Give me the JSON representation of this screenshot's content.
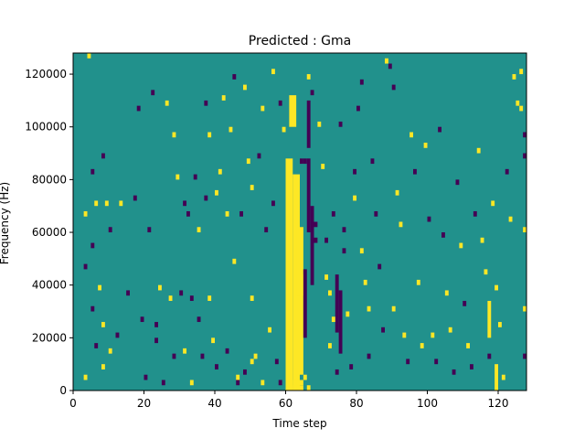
{
  "chart_data": {
    "type": "heatmap",
    "title": "Predicted : Gma",
    "xlabel": "Time step",
    "ylabel": "Frequency (Hz)",
    "xlim": [
      0,
      128
    ],
    "ylim": [
      0,
      128000
    ],
    "x_ticks": [
      0,
      20,
      40,
      60,
      80,
      100,
      120
    ],
    "y_ticks": [
      0,
      20000,
      40000,
      60000,
      80000,
      100000,
      120000
    ],
    "grid": false,
    "colors": {
      "low": "#440154",
      "mid": "#21918c",
      "high": "#fde725"
    },
    "background_level": "mid",
    "cells": [
      [
        3,
        4000,
        "high"
      ],
      [
        3,
        66000,
        "high"
      ],
      [
        3,
        46000,
        "low"
      ],
      [
        4,
        126000,
        "high"
      ],
      [
        5,
        82000,
        "low"
      ],
      [
        5,
        54000,
        "low"
      ],
      [
        5,
        30000,
        "low"
      ],
      [
        6,
        70000,
        "high"
      ],
      [
        6,
        16000,
        "low"
      ],
      [
        7,
        38000,
        "high"
      ],
      [
        8,
        88000,
        "low"
      ],
      [
        8,
        24000,
        "high"
      ],
      [
        8,
        8000,
        "high"
      ],
      [
        9,
        70000,
        "high"
      ],
      [
        10,
        60000,
        "low"
      ],
      [
        10,
        14000,
        "high"
      ],
      [
        12,
        20000,
        "low"
      ],
      [
        13,
        70000,
        "high"
      ],
      [
        15,
        36000,
        "low"
      ],
      [
        17,
        72000,
        "low"
      ],
      [
        18,
        106000,
        "low"
      ],
      [
        19,
        26000,
        "low"
      ],
      [
        20,
        4000,
        "low"
      ],
      [
        21,
        60000,
        "low"
      ],
      [
        22,
        112000,
        "low"
      ],
      [
        23,
        18000,
        "low"
      ],
      [
        23,
        24000,
        "low"
      ],
      [
        24,
        38000,
        "high"
      ],
      [
        25,
        2000,
        "low"
      ],
      [
        26,
        108000,
        "high"
      ],
      [
        27,
        34000,
        "high"
      ],
      [
        28,
        12000,
        "low"
      ],
      [
        28,
        96000,
        "high"
      ],
      [
        29,
        80000,
        "high"
      ],
      [
        30,
        36000,
        "low"
      ],
      [
        31,
        70000,
        "low"
      ],
      [
        31,
        14000,
        "high"
      ],
      [
        32,
        66000,
        "low"
      ],
      [
        33,
        34000,
        "low"
      ],
      [
        33,
        2000,
        "high"
      ],
      [
        34,
        80000,
        "low"
      ],
      [
        35,
        60000,
        "high"
      ],
      [
        35,
        26000,
        "low"
      ],
      [
        36,
        12000,
        "low"
      ],
      [
        37,
        72000,
        "low"
      ],
      [
        37,
        108000,
        "low"
      ],
      [
        38,
        96000,
        "high"
      ],
      [
        38,
        34000,
        "high"
      ],
      [
        39,
        18000,
        "high"
      ],
      [
        40,
        74000,
        "high"
      ],
      [
        40,
        8000,
        "low"
      ],
      [
        41,
        82000,
        "high"
      ],
      [
        42,
        110000,
        "high"
      ],
      [
        43,
        66000,
        "high"
      ],
      [
        43,
        14000,
        "low"
      ],
      [
        44,
        98000,
        "high"
      ],
      [
        45,
        118000,
        "low"
      ],
      [
        45,
        48000,
        "high"
      ],
      [
        46,
        4000,
        "high"
      ],
      [
        46,
        2000,
        "low"
      ],
      [
        47,
        66000,
        "low"
      ],
      [
        48,
        6000,
        "low"
      ],
      [
        48,
        114000,
        "high"
      ],
      [
        49,
        86000,
        "high"
      ],
      [
        50,
        76000,
        "high"
      ],
      [
        50,
        34000,
        "high"
      ],
      [
        50,
        10000,
        "high"
      ],
      [
        51,
        12000,
        "high"
      ],
      [
        52,
        88000,
        "low"
      ],
      [
        53,
        106000,
        "high"
      ],
      [
        53,
        2000,
        "high"
      ],
      [
        54,
        60000,
        "low"
      ],
      [
        55,
        22000,
        "high"
      ],
      [
        56,
        70000,
        "low"
      ],
      [
        56,
        120000,
        "high"
      ],
      [
        57,
        10000,
        "low"
      ],
      [
        58,
        108000,
        "low"
      ],
      [
        58,
        2000,
        "low"
      ],
      [
        59,
        98000,
        "high"
      ],
      [
        60,
        66000,
        "high"
      ],
      [
        60,
        14000,
        "high"
      ]
    ],
    "bands": [
      {
        "x0": 60,
        "x1": 62,
        "y0": 0,
        "y1": 88000,
        "level": "high"
      },
      {
        "x0": 62,
        "x1": 64,
        "y0": 0,
        "y1": 82000,
        "level": "high"
      },
      {
        "x0": 61,
        "x1": 63,
        "y0": 100000,
        "y1": 112000,
        "level": "high"
      },
      {
        "x0": 63,
        "x1": 65,
        "y0": 36000,
        "y1": 62000,
        "level": "high"
      },
      {
        "x0": 64,
        "x1": 65,
        "y0": 6000,
        "y1": 44000,
        "level": "high"
      },
      {
        "x0": 65,
        "x1": 66,
        "y0": 20000,
        "y1": 46000,
        "level": "low"
      },
      {
        "x0": 66,
        "x1": 67,
        "y0": 60000,
        "y1": 88000,
        "level": "low"
      },
      {
        "x0": 66,
        "x1": 67,
        "y0": 92000,
        "y1": 110000,
        "level": "low"
      },
      {
        "x0": 67,
        "x1": 68,
        "y0": 40000,
        "y1": 70000,
        "level": "low"
      },
      {
        "x0": 74,
        "x1": 75,
        "y0": 22000,
        "y1": 44000,
        "level": "low"
      },
      {
        "x0": 75,
        "x1": 76,
        "y0": 14000,
        "y1": 38000,
        "level": "low"
      },
      {
        "x0": 119,
        "x1": 120,
        "y0": 0,
        "y1": 10000,
        "level": "high"
      },
      {
        "x0": 117,
        "x1": 118,
        "y0": 20000,
        "y1": 34000,
        "level": "high"
      }
    ],
    "cells_extra": [
      [
        61,
        0,
        "high"
      ],
      [
        62,
        0,
        "high"
      ],
      [
        62,
        2000,
        "high"
      ],
      [
        63,
        0,
        "high"
      ],
      [
        63,
        2000,
        "high"
      ],
      [
        64,
        0,
        "high"
      ],
      [
        64,
        2000,
        "high"
      ],
      [
        65,
        4000,
        "high"
      ],
      [
        66,
        0,
        "high"
      ],
      [
        64,
        86000,
        "low"
      ],
      [
        65,
        86000,
        "low"
      ],
      [
        67,
        112000,
        "low"
      ],
      [
        66,
        118000,
        "high"
      ],
      [
        68,
        62000,
        "low"
      ],
      [
        68,
        56000,
        "low"
      ],
      [
        69,
        100000,
        "high"
      ],
      [
        70,
        84000,
        "high"
      ],
      [
        71,
        56000,
        "low"
      ],
      [
        71,
        42000,
        "high"
      ],
      [
        72,
        36000,
        "high"
      ],
      [
        73,
        26000,
        "high"
      ],
      [
        72,
        16000,
        "high"
      ],
      [
        73,
        66000,
        "low"
      ],
      [
        74,
        6000,
        "low"
      ],
      [
        75,
        100000,
        "low"
      ],
      [
        76,
        60000,
        "low"
      ],
      [
        76,
        52000,
        "low"
      ],
      [
        77,
        28000,
        "high"
      ],
      [
        78,
        8000,
        "low"
      ],
      [
        79,
        82000,
        "low"
      ],
      [
        79,
        72000,
        "high"
      ],
      [
        80,
        106000,
        "low"
      ],
      [
        81,
        116000,
        "low"
      ],
      [
        81,
        52000,
        "high"
      ],
      [
        82,
        40000,
        "high"
      ],
      [
        83,
        30000,
        "high"
      ],
      [
        83,
        12000,
        "low"
      ],
      [
        84,
        86000,
        "low"
      ],
      [
        85,
        66000,
        "low"
      ],
      [
        86,
        46000,
        "low"
      ],
      [
        87,
        22000,
        "low"
      ],
      [
        88,
        124000,
        "high"
      ],
      [
        89,
        122000,
        "low"
      ],
      [
        90,
        114000,
        "low"
      ],
      [
        90,
        30000,
        "high"
      ],
      [
        91,
        74000,
        "high"
      ],
      [
        92,
        62000,
        "high"
      ],
      [
        93,
        20000,
        "high"
      ],
      [
        94,
        10000,
        "low"
      ],
      [
        95,
        96000,
        "high"
      ],
      [
        96,
        82000,
        "low"
      ],
      [
        97,
        40000,
        "high"
      ],
      [
        98,
        16000,
        "high"
      ],
      [
        99,
        92000,
        "high"
      ],
      [
        100,
        64000,
        "low"
      ],
      [
        101,
        20000,
        "high"
      ],
      [
        102,
        10000,
        "low"
      ],
      [
        103,
        98000,
        "low"
      ],
      [
        104,
        58000,
        "low"
      ],
      [
        105,
        36000,
        "high"
      ],
      [
        106,
        22000,
        "high"
      ],
      [
        107,
        6000,
        "low"
      ],
      [
        108,
        78000,
        "low"
      ],
      [
        109,
        54000,
        "high"
      ],
      [
        110,
        32000,
        "low"
      ],
      [
        111,
        16000,
        "high"
      ],
      [
        112,
        8000,
        "low"
      ],
      [
        113,
        66000,
        "low"
      ],
      [
        114,
        90000,
        "high"
      ],
      [
        115,
        56000,
        "high"
      ],
      [
        116,
        44000,
        "high"
      ],
      [
        117,
        12000,
        "low"
      ],
      [
        118,
        70000,
        "high"
      ],
      [
        119,
        38000,
        "high"
      ],
      [
        120,
        24000,
        "high"
      ],
      [
        121,
        4000,
        "high"
      ],
      [
        122,
        82000,
        "low"
      ],
      [
        123,
        64000,
        "high"
      ],
      [
        124,
        118000,
        "high"
      ],
      [
        125,
        108000,
        "high"
      ],
      [
        126,
        106000,
        "high"
      ],
      [
        126,
        120000,
        "high"
      ],
      [
        127,
        96000,
        "low"
      ],
      [
        127,
        88000,
        "low"
      ],
      [
        127,
        60000,
        "high"
      ],
      [
        127,
        12000,
        "low"
      ],
      [
        127,
        30000,
        "high"
      ]
    ]
  }
}
